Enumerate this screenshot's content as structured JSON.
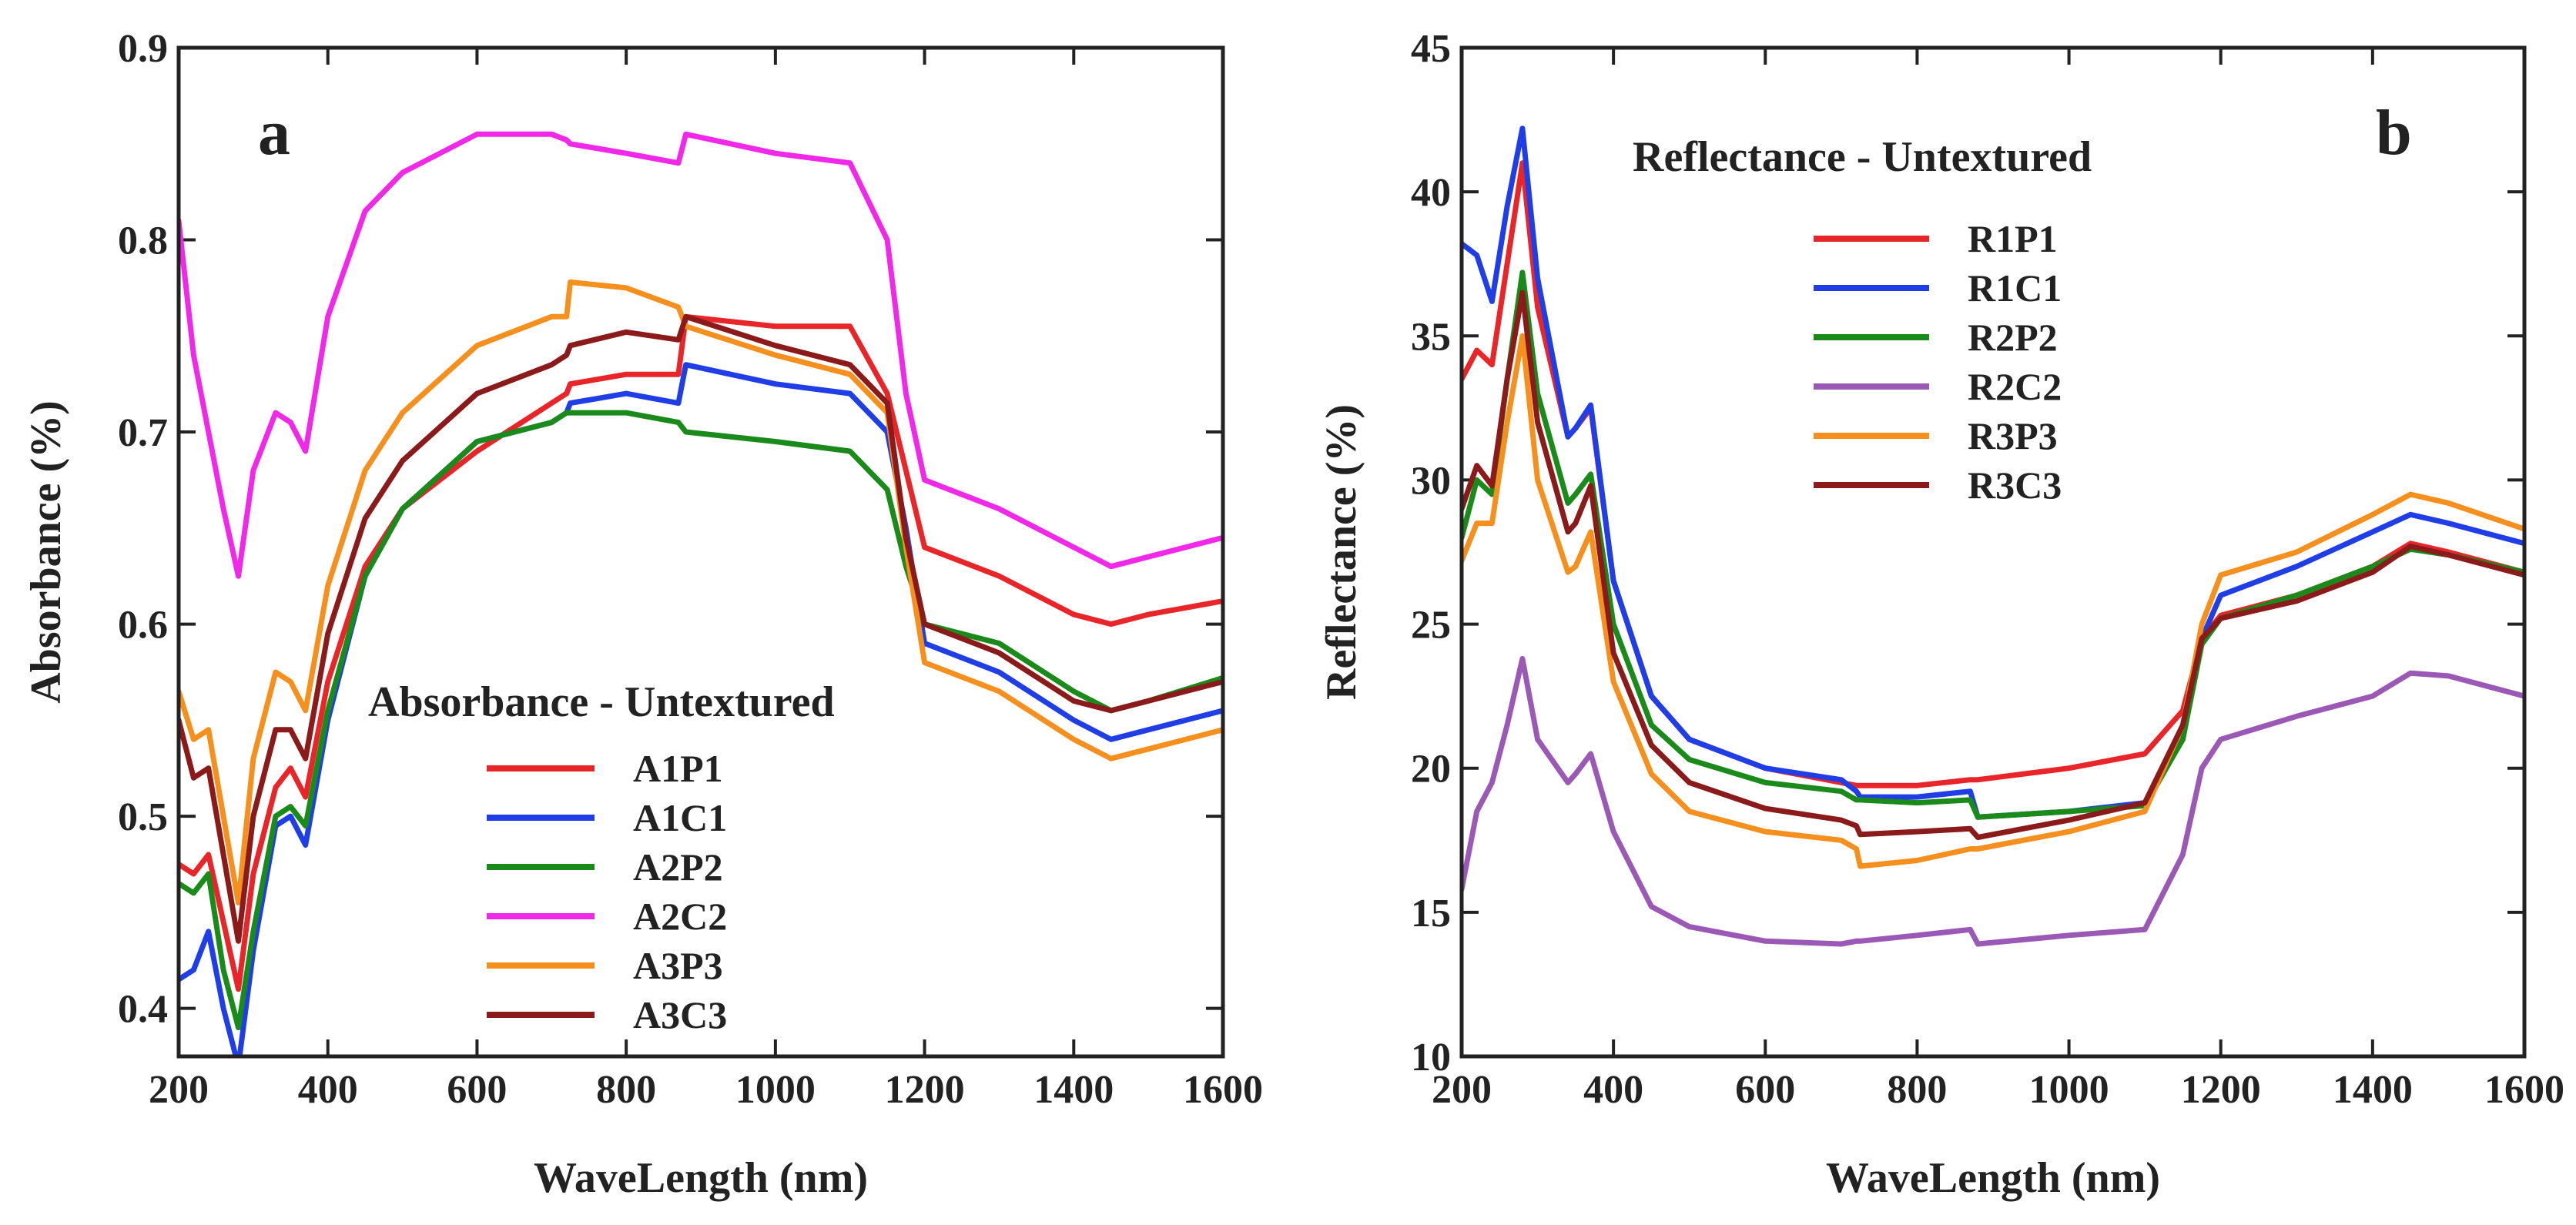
{
  "chart_data": [
    {
      "type": "line",
      "panel_letter": "a",
      "title": "Absorbance - Untextured",
      "xlabel": "WaveLength (nm)",
      "ylabel": "Absorbance (%)",
      "xlim": [
        200,
        1600
      ],
      "ylim": [
        0.375,
        0.9
      ],
      "xticks": [
        200,
        400,
        600,
        800,
        1000,
        1200,
        1400,
        1600
      ],
      "yticks": [
        0.4,
        0.5,
        0.6,
        0.7,
        0.8,
        0.9
      ],
      "xtick_labels": [
        "200",
        "400",
        "600",
        "800",
        "1000",
        "1200",
        "1400",
        "1600"
      ],
      "ytick_labels": [
        "0.4",
        "0.5",
        "0.6",
        "0.7",
        "0.8",
        "0.9"
      ],
      "legend_position": "lower-center",
      "x": [
        200,
        220,
        240,
        260,
        280,
        300,
        330,
        350,
        370,
        400,
        450,
        500,
        600,
        700,
        720,
        725,
        800,
        870,
        880,
        1000,
        1100,
        1150,
        1175,
        1200,
        1300,
        1400,
        1450,
        1500,
        1600
      ],
      "series": [
        {
          "name": "A1P1",
          "color": "#e8262a",
          "values": [
            0.475,
            0.47,
            0.48,
            0.445,
            0.41,
            0.47,
            0.515,
            0.525,
            0.51,
            0.57,
            0.63,
            0.66,
            0.69,
            0.715,
            0.72,
            0.725,
            0.73,
            0.73,
            0.76,
            0.755,
            0.755,
            0.72,
            0.68,
            0.64,
            0.625,
            0.605,
            0.6,
            0.605,
            0.612
          ]
        },
        {
          "name": "A1C1",
          "color": "#1f3ee6",
          "values": [
            0.415,
            0.42,
            0.44,
            0.4,
            0.37,
            0.43,
            0.495,
            0.5,
            0.485,
            0.55,
            0.625,
            0.66,
            0.695,
            0.705,
            0.71,
            0.715,
            0.72,
            0.715,
            0.735,
            0.725,
            0.72,
            0.7,
            0.65,
            0.59,
            0.575,
            0.55,
            0.54,
            0.545,
            0.555
          ]
        },
        {
          "name": "A2P2",
          "color": "#1a8a1a",
          "values": [
            0.465,
            0.46,
            0.47,
            0.42,
            0.39,
            0.44,
            0.5,
            0.505,
            0.495,
            0.555,
            0.625,
            0.66,
            0.695,
            0.705,
            0.71,
            0.71,
            0.71,
            0.705,
            0.7,
            0.695,
            0.69,
            0.67,
            0.63,
            0.6,
            0.59,
            0.565,
            0.555,
            0.56,
            0.572
          ]
        },
        {
          "name": "A2C2",
          "color": "#f028e8",
          "values": [
            0.81,
            0.74,
            0.7,
            0.66,
            0.625,
            0.68,
            0.71,
            0.705,
            0.69,
            0.76,
            0.815,
            0.835,
            0.855,
            0.855,
            0.852,
            0.85,
            0.845,
            0.84,
            0.855,
            0.845,
            0.84,
            0.8,
            0.72,
            0.675,
            0.66,
            0.64,
            0.63,
            0.635,
            0.645
          ]
        },
        {
          "name": "A3P3",
          "color": "#f5901e",
          "values": [
            0.565,
            0.54,
            0.545,
            0.5,
            0.455,
            0.53,
            0.575,
            0.57,
            0.555,
            0.62,
            0.68,
            0.71,
            0.745,
            0.76,
            0.76,
            0.778,
            0.775,
            0.765,
            0.755,
            0.74,
            0.73,
            0.71,
            0.64,
            0.58,
            0.565,
            0.54,
            0.53,
            0.535,
            0.545
          ]
        },
        {
          "name": "A3C3",
          "color": "#8b1a1a",
          "values": [
            0.55,
            0.52,
            0.525,
            0.48,
            0.435,
            0.5,
            0.545,
            0.545,
            0.53,
            0.595,
            0.655,
            0.685,
            0.72,
            0.735,
            0.74,
            0.745,
            0.752,
            0.748,
            0.76,
            0.745,
            0.735,
            0.715,
            0.645,
            0.6,
            0.585,
            0.56,
            0.555,
            0.56,
            0.57
          ]
        }
      ]
    },
    {
      "type": "line",
      "panel_letter": "b",
      "title": "Reflectance - Untextured",
      "xlabel": "WaveLength (nm)",
      "ylabel": "Reflectance (%)",
      "xlim": [
        200,
        1600
      ],
      "ylim": [
        10,
        45
      ],
      "xticks": [
        200,
        400,
        600,
        800,
        1000,
        1200,
        1400,
        1600
      ],
      "yticks": [
        10,
        15,
        20,
        25,
        30,
        35,
        40,
        45
      ],
      "xtick_labels": [
        "200",
        "400",
        "600",
        "800",
        "1000",
        "1200",
        "1400",
        "1600"
      ],
      "ytick_labels": [
        "10",
        "15",
        "20",
        "25",
        "30",
        "35",
        "40",
        "45"
      ],
      "legend_position": "top-center",
      "x": [
        200,
        220,
        240,
        260,
        280,
        300,
        340,
        350,
        370,
        400,
        450,
        500,
        600,
        700,
        720,
        725,
        800,
        870,
        880,
        1000,
        1100,
        1150,
        1175,
        1200,
        1300,
        1400,
        1450,
        1500,
        1600
      ],
      "series": [
        {
          "name": "R1P1",
          "color": "#e8262a",
          "values": [
            33.5,
            34.5,
            34.0,
            37.5,
            41.0,
            36.0,
            31.5,
            31.8,
            32.5,
            26.5,
            22.5,
            21.0,
            20.0,
            19.5,
            19.4,
            19.4,
            19.4,
            19.6,
            19.6,
            20.0,
            20.5,
            22.0,
            24.5,
            25.3,
            26.0,
            27.0,
            27.8,
            27.5,
            26.8
          ]
        },
        {
          "name": "R1C1",
          "color": "#1f3ee6",
          "values": [
            38.2,
            37.8,
            36.2,
            39.5,
            42.2,
            37.0,
            31.5,
            31.8,
            32.6,
            26.5,
            22.5,
            21.0,
            20.0,
            19.6,
            19.2,
            19.0,
            19.0,
            19.2,
            18.3,
            18.5,
            18.8,
            21.0,
            24.5,
            26.0,
            27.0,
            28.2,
            28.8,
            28.5,
            27.8
          ]
        },
        {
          "name": "R2P2",
          "color": "#1a8a1a",
          "values": [
            28.0,
            30.0,
            29.5,
            33.5,
            37.2,
            33.0,
            29.2,
            29.5,
            30.2,
            25.0,
            21.5,
            20.3,
            19.5,
            19.2,
            18.9,
            18.9,
            18.8,
            18.9,
            18.3,
            18.5,
            18.7,
            21.0,
            24.3,
            25.2,
            26.0,
            27.0,
            27.6,
            27.4,
            26.8
          ]
        },
        {
          "name": "R2C2",
          "color": "#9b59b6",
          "values": [
            15.8,
            18.5,
            19.5,
            21.5,
            23.8,
            21.0,
            19.5,
            19.8,
            20.5,
            17.8,
            15.2,
            14.5,
            14.0,
            13.9,
            14.0,
            14.0,
            14.2,
            14.4,
            13.9,
            14.2,
            14.4,
            17.0,
            20.0,
            21.0,
            21.8,
            22.5,
            23.3,
            23.2,
            22.5
          ]
        },
        {
          "name": "R3P3",
          "color": "#f5901e",
          "values": [
            27.2,
            28.5,
            28.5,
            32.0,
            35.0,
            30.0,
            26.8,
            27.0,
            28.2,
            23.0,
            19.8,
            18.5,
            17.8,
            17.5,
            17.2,
            16.6,
            16.8,
            17.2,
            17.2,
            17.8,
            18.5,
            21.5,
            25.0,
            26.7,
            27.5,
            28.8,
            29.5,
            29.2,
            28.3
          ]
        },
        {
          "name": "R3C3",
          "color": "#8b1a1a",
          "values": [
            29.0,
            30.5,
            29.8,
            33.5,
            36.5,
            32.0,
            28.2,
            28.5,
            29.8,
            24.0,
            20.8,
            19.5,
            18.6,
            18.2,
            18.0,
            17.7,
            17.8,
            17.9,
            17.6,
            18.2,
            18.8,
            21.5,
            24.5,
            25.2,
            25.8,
            26.8,
            27.7,
            27.4,
            26.7
          ]
        }
      ]
    }
  ]
}
